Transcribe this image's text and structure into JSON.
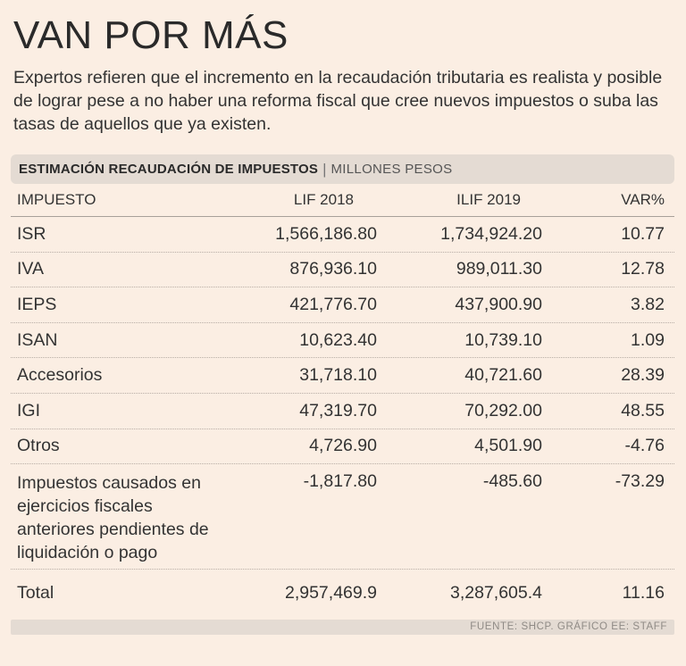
{
  "title": "VAN POR MÁS",
  "subtitle": "Expertos refieren que el incremento en la recaudación tributaria es realista y posible de lograr pese a no haber una reforma fiscal que cree nuevos impuestos o suba las tasas de aquellos que ya existen.",
  "banner": {
    "title": "ESTIMACIÓN RECAUDACIÓN DE IMPUESTOS",
    "separator": "|",
    "unit": "MILLONES PESOS"
  },
  "table": {
    "headers": [
      "IMPUESTO",
      "LIF 2018",
      "ILIF 2019",
      "VAR%"
    ],
    "rows": [
      [
        "ISR",
        "1,566,186.80",
        "1,734,924.20",
        "10.77"
      ],
      [
        "IVA",
        "876,936.10",
        "989,011.30",
        "12.78"
      ],
      [
        "IEPS",
        "421,776.70",
        "437,900.90",
        "3.82"
      ],
      [
        "ISAN",
        "10,623.40",
        "10,739.10",
        "1.09"
      ],
      [
        "Accesorios",
        "31,718.10",
        "40,721.60",
        "28.39"
      ],
      [
        "IGI",
        "47,319.70",
        "70,292.00",
        "48.55"
      ],
      [
        "Otros",
        "4,726.90",
        "4,501.90",
        "-4.76"
      ],
      [
        "Impuestos causados en ejercicios fiscales anteriores pendientes de liquidación o pago",
        "-1,817.80",
        "-485.60",
        "-73.29"
      ],
      [
        "Total",
        "2,957,469.9",
        "3,287,605.4",
        "11.16"
      ]
    ]
  },
  "footer": "FUENTE: SHCP. GRÁFICO EE: STAFF"
}
